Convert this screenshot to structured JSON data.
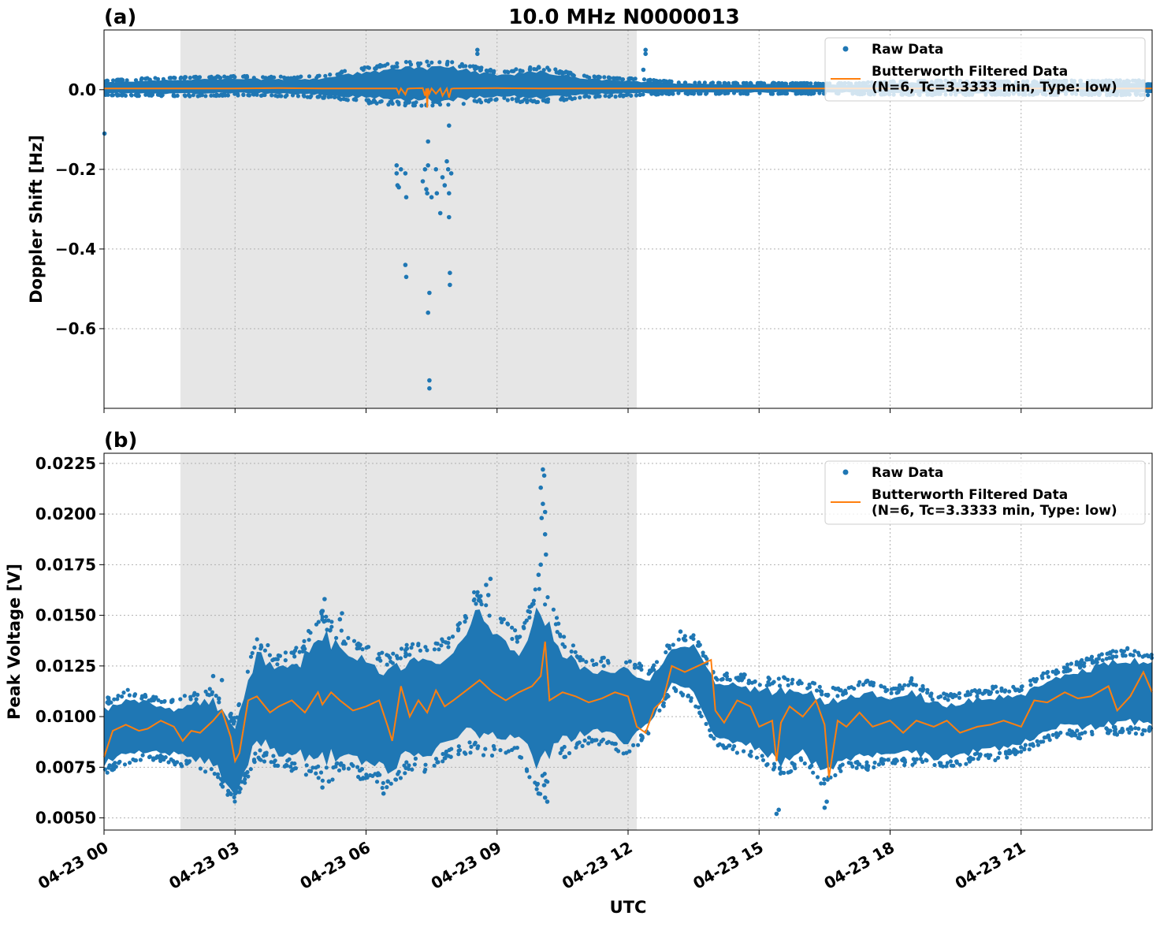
{
  "chart_data": [
    {
      "type": "scatter",
      "panel_label": "(a)",
      "title": "10.0 MHz N0000013",
      "xlabel": "",
      "ylabel": "Doppler Shift [Hz]",
      "x_range_hours": [
        0,
        24
      ],
      "ylim": [
        -0.8,
        0.15
      ],
      "yticks": [
        0.0,
        -0.2,
        -0.4,
        -0.6
      ],
      "ytick_labels": [
        "0.0",
        "−0.2",
        "−0.4",
        "−0.6"
      ],
      "grid": true,
      "legend_position": "top-right",
      "shaded_region_hours": [
        1.75,
        12.2
      ],
      "series": [
        {
          "name": "Raw Data",
          "style": "points",
          "color": "#1f77b4",
          "band": [
            [
              0,
              -0.01,
              0.02
            ],
            [
              1,
              -0.012,
              0.025
            ],
            [
              2,
              -0.012,
              0.028
            ],
            [
              3,
              -0.01,
              0.03
            ],
            [
              4,
              -0.012,
              0.028
            ],
            [
              5,
              -0.015,
              0.03
            ],
            [
              6,
              -0.025,
              0.05
            ],
            [
              7,
              -0.03,
              0.06
            ],
            [
              8,
              -0.03,
              0.06
            ],
            [
              9,
              -0.02,
              0.04
            ],
            [
              10,
              -0.025,
              0.05
            ],
            [
              11,
              -0.015,
              0.03
            ],
            [
              12,
              -0.012,
              0.025
            ],
            [
              13,
              -0.008,
              0.018
            ],
            [
              14,
              -0.008,
              0.015
            ],
            [
              15,
              -0.008,
              0.015
            ],
            [
              16,
              -0.008,
              0.014
            ],
            [
              17,
              -0.008,
              0.014
            ],
            [
              18,
              -0.01,
              0.018
            ],
            [
              19,
              -0.01,
              0.02
            ],
            [
              20,
              -0.01,
              0.018
            ],
            [
              21,
              -0.01,
              0.018
            ],
            [
              22,
              -0.01,
              0.02
            ],
            [
              23,
              -0.01,
              0.02
            ],
            [
              24,
              -0.01,
              0.02
            ]
          ],
          "outliers": [
            [
              0.01,
              -0.11
            ],
            [
              6.7,
              -0.19
            ],
            [
              6.7,
              -0.21
            ],
            [
              6.72,
              -0.24
            ],
            [
              6.75,
              -0.245
            ],
            [
              6.8,
              -0.2
            ],
            [
              6.9,
              -0.21
            ],
            [
              6.92,
              -0.27
            ],
            [
              6.9,
              -0.44
            ],
            [
              6.92,
              -0.47
            ],
            [
              7.3,
              -0.23
            ],
            [
              7.35,
              -0.2
            ],
            [
              7.38,
              -0.25
            ],
            [
              7.4,
              -0.26
            ],
            [
              7.42,
              -0.19
            ],
            [
              7.42,
              -0.13
            ],
            [
              7.45,
              -0.51
            ],
            [
              7.42,
              -0.56
            ],
            [
              7.45,
              -0.73
            ],
            [
              7.45,
              -0.75
            ],
            [
              7.5,
              -0.27
            ],
            [
              7.6,
              -0.2
            ],
            [
              7.62,
              -0.26
            ],
            [
              7.7,
              -0.31
            ],
            [
              7.75,
              -0.22
            ],
            [
              7.8,
              -0.24
            ],
            [
              7.85,
              -0.18
            ],
            [
              7.88,
              -0.2
            ],
            [
              7.9,
              -0.26
            ],
            [
              7.9,
              -0.32
            ],
            [
              7.92,
              -0.46
            ],
            [
              7.92,
              -0.49
            ],
            [
              7.95,
              -0.21
            ],
            [
              8.55,
              0.1
            ],
            [
              8.55,
              0.09
            ],
            [
              12.4,
              0.1
            ],
            [
              12.4,
              0.09
            ],
            [
              12.35,
              0.05
            ],
            [
              7.9,
              -0.09
            ]
          ]
        },
        {
          "name": "Butterworth Filtered Data\n(N=6, Tc=3.3333 min, Type: low)",
          "style": "line",
          "color": "#ff7f0e",
          "x": [
            0,
            1,
            2,
            3,
            4,
            5,
            6,
            6.7,
            6.75,
            6.8,
            6.9,
            6.95,
            7.0,
            7.3,
            7.35,
            7.38,
            7.4,
            7.42,
            7.45,
            7.5,
            7.6,
            7.7,
            7.75,
            7.85,
            7.9,
            7.95,
            8.0,
            9,
            10,
            11,
            12,
            13,
            14,
            15,
            16,
            17,
            18,
            19,
            20,
            21,
            22,
            23,
            24
          ],
          "y": [
            0.003,
            0.003,
            0.003,
            0.003,
            0.004,
            0.003,
            0.003,
            0.003,
            -0.01,
            0.003,
            -0.012,
            0.002,
            0.003,
            0.004,
            -0.015,
            0.003,
            -0.045,
            0.004,
            -0.01,
            0.003,
            -0.01,
            0.003,
            -0.015,
            0.003,
            -0.02,
            0.002,
            0.003,
            0.004,
            0.003,
            0.003,
            0.003,
            0.003,
            0.003,
            0.003,
            0.003,
            0.003,
            0.003,
            0.003,
            0.003,
            0.003,
            0.003,
            0.003,
            0.003
          ]
        }
      ]
    },
    {
      "type": "scatter",
      "panel_label": "(b)",
      "title": "",
      "xlabel": "UTC",
      "ylabel": "Peak Voltage [V]",
      "x_range_hours": [
        0,
        24
      ],
      "ylim": [
        0.0044,
        0.023
      ],
      "yticks": [
        0.005,
        0.0075,
        0.01,
        0.0125,
        0.015,
        0.0175,
        0.02,
        0.0225
      ],
      "ytick_labels": [
        "0.0050",
        "0.0075",
        "0.0100",
        "0.0125",
        "0.0150",
        "0.0175",
        "0.0200",
        "0.0225"
      ],
      "x_ticks_hours": [
        0,
        3,
        6,
        9,
        12,
        15,
        18,
        21
      ],
      "xtick_labels": [
        "04-23 00",
        "04-23 03",
        "04-23 06",
        "04-23 09",
        "04-23 12",
        "04-23 15",
        "04-23 18",
        "04-23 21"
      ],
      "grid": true,
      "legend_position": "top-right",
      "shaded_region_hours": [
        1.75,
        12.2
      ],
      "series": [
        {
          "name": "Raw Data",
          "style": "points",
          "color": "#1f77b4",
          "band": [
            [
              0,
              0.0075,
              0.0105
            ],
            [
              0.5,
              0.008,
              0.011
            ],
            [
              1,
              0.0082,
              0.0108
            ],
            [
              1.5,
              0.008,
              0.0105
            ],
            [
              2,
              0.0078,
              0.0108
            ],
            [
              2.5,
              0.0075,
              0.011
            ],
            [
              3,
              0.006,
              0.0095
            ],
            [
              3.5,
              0.0085,
              0.0135
            ],
            [
              4,
              0.008,
              0.0125
            ],
            [
              4.5,
              0.0078,
              0.013
            ],
            [
              5,
              0.0075,
              0.0145
            ],
            [
              5.5,
              0.0078,
              0.0135
            ],
            [
              6,
              0.0075,
              0.013
            ],
            [
              6.5,
              0.007,
              0.0125
            ],
            [
              7,
              0.008,
              0.013
            ],
            [
              7.5,
              0.0078,
              0.013
            ],
            [
              8,
              0.0085,
              0.0135
            ],
            [
              8.5,
              0.009,
              0.0155
            ],
            [
              9,
              0.0085,
              0.0145
            ],
            [
              9.5,
              0.0085,
              0.0135
            ],
            [
              10,
              0.007,
              0.016
            ],
            [
              10.5,
              0.0085,
              0.0135
            ],
            [
              11,
              0.009,
              0.0125
            ],
            [
              11.5,
              0.009,
              0.0125
            ],
            [
              12,
              0.0085,
              0.0125
            ],
            [
              12.5,
              0.0095,
              0.012
            ],
            [
              13,
              0.0115,
              0.0135
            ],
            [
              13.5,
              0.011,
              0.0138
            ],
            [
              14,
              0.0088,
              0.0118
            ],
            [
              14.5,
              0.0085,
              0.0118
            ],
            [
              15,
              0.0082,
              0.0115
            ],
            [
              15.5,
              0.0075,
              0.0115
            ],
            [
              16,
              0.008,
              0.0115
            ],
            [
              16.5,
              0.007,
              0.011
            ],
            [
              17,
              0.0078,
              0.011
            ],
            [
              17.5,
              0.0078,
              0.0115
            ],
            [
              18,
              0.008,
              0.011
            ],
            [
              18.5,
              0.008,
              0.0115
            ],
            [
              19,
              0.0078,
              0.0108
            ],
            [
              19.5,
              0.0078,
              0.0108
            ],
            [
              20,
              0.0082,
              0.011
            ],
            [
              20.5,
              0.0082,
              0.0112
            ],
            [
              21,
              0.0085,
              0.0112
            ],
            [
              21.5,
              0.009,
              0.0118
            ],
            [
              22,
              0.0095,
              0.0122
            ],
            [
              22.5,
              0.0092,
              0.0125
            ],
            [
              23,
              0.0095,
              0.0128
            ],
            [
              23.5,
              0.0095,
              0.013
            ],
            [
              24,
              0.0095,
              0.0128
            ]
          ],
          "outliers": [
            [
              10.05,
              0.0222
            ],
            [
              10.08,
              0.0219
            ],
            [
              10.0,
              0.0213
            ],
            [
              10.05,
              0.0205
            ],
            [
              10.1,
              0.0201
            ],
            [
              10.02,
              0.0198
            ],
            [
              10.1,
              0.019
            ],
            [
              10.12,
              0.018
            ],
            [
              10.0,
              0.0175
            ],
            [
              9.95,
              0.017
            ],
            [
              8.85,
              0.0168
            ],
            [
              8.75,
              0.0165
            ],
            [
              8.8,
              0.016
            ],
            [
              5.05,
              0.0158
            ],
            [
              5.0,
              0.0152
            ],
            [
              5.45,
              0.0151
            ],
            [
              5.4,
              0.0148
            ],
            [
              10.1,
              0.006
            ],
            [
              10.15,
              0.0058
            ],
            [
              9.95,
              0.0062
            ],
            [
              5.0,
              0.0065
            ],
            [
              5.15,
              0.0068
            ],
            [
              6.4,
              0.0062
            ],
            [
              6.5,
              0.0068
            ],
            [
              15.4,
              0.0052
            ],
            [
              15.45,
              0.0054
            ],
            [
              16.5,
              0.0055
            ],
            [
              16.55,
              0.0058
            ],
            [
              3.0,
              0.0062
            ],
            [
              13.2,
              0.0142
            ],
            [
              12.9,
              0.0135
            ],
            [
              2.5,
              0.012
            ],
            [
              4.4,
              0.0125
            ],
            [
              2.7,
              0.0118
            ]
          ]
        },
        {
          "name": "Butterworth Filtered Data\n(N=6, Tc=3.3333 min, Type: low)",
          "style": "line",
          "color": "#ff7f0e",
          "x": [
            0,
            0.2,
            0.5,
            0.8,
            1,
            1.3,
            1.6,
            1.8,
            2,
            2.2,
            2.5,
            2.7,
            2.9,
            3,
            3.1,
            3.3,
            3.5,
            3.8,
            4,
            4.3,
            4.6,
            4.9,
            5,
            5.2,
            5.4,
            5.7,
            6,
            6.3,
            6.5,
            6.6,
            6.8,
            7,
            7.2,
            7.4,
            7.6,
            7.8,
            8,
            8.3,
            8.6,
            8.9,
            9.2,
            9.5,
            9.8,
            10,
            10.1,
            10.2,
            10.5,
            10.8,
            11.1,
            11.4,
            11.7,
            12,
            12.2,
            12.4,
            12.6,
            12.8,
            13,
            13.3,
            13.6,
            13.9,
            14,
            14.2,
            14.5,
            14.8,
            15,
            15.3,
            15.4,
            15.5,
            15.7,
            16,
            16.3,
            16.5,
            16.6,
            16.8,
            17,
            17.3,
            17.6,
            18,
            18.3,
            18.6,
            19,
            19.3,
            19.6,
            20,
            20.3,
            20.6,
            21,
            21.3,
            21.6,
            22,
            22.3,
            22.6,
            23,
            23.2,
            23.5,
            23.8,
            24
          ],
          "y": [
            0.008,
            0.0093,
            0.0096,
            0.0093,
            0.0094,
            0.0098,
            0.0095,
            0.0088,
            0.0093,
            0.0092,
            0.0098,
            0.0103,
            0.009,
            0.0078,
            0.0082,
            0.0108,
            0.011,
            0.0102,
            0.0105,
            0.0108,
            0.0102,
            0.0112,
            0.0106,
            0.0112,
            0.0108,
            0.0103,
            0.0105,
            0.0108,
            0.0095,
            0.0088,
            0.0115,
            0.01,
            0.0108,
            0.0102,
            0.0113,
            0.0105,
            0.0108,
            0.0113,
            0.0118,
            0.0112,
            0.0108,
            0.0112,
            0.0115,
            0.012,
            0.0137,
            0.0108,
            0.0112,
            0.011,
            0.0107,
            0.0109,
            0.0112,
            0.011,
            0.0095,
            0.0092,
            0.0104,
            0.0108,
            0.0125,
            0.0122,
            0.0125,
            0.0128,
            0.0103,
            0.0097,
            0.0108,
            0.0105,
            0.0095,
            0.0098,
            0.0078,
            0.0097,
            0.0105,
            0.01,
            0.0108,
            0.0096,
            0.007,
            0.0098,
            0.0095,
            0.0102,
            0.0095,
            0.0098,
            0.0092,
            0.0098,
            0.0095,
            0.0098,
            0.0092,
            0.0095,
            0.0096,
            0.0098,
            0.0095,
            0.0108,
            0.0107,
            0.0112,
            0.0109,
            0.011,
            0.0115,
            0.0103,
            0.011,
            0.0122,
            0.0112
          ]
        }
      ]
    }
  ]
}
